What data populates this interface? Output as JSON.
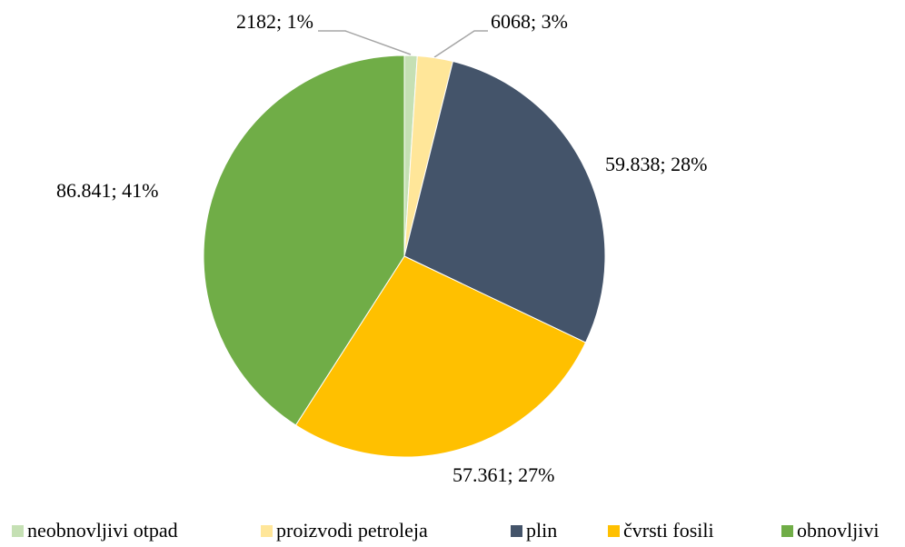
{
  "chart_data": {
    "type": "pie",
    "categories": [
      "neobnovljivi otpad",
      "proizvodi petroleja",
      "plin",
      "čvrsti fosili",
      "obnovljivi"
    ],
    "values": [
      2182,
      6068,
      59838,
      57361,
      86841
    ],
    "value_labels": [
      "2182; 1%",
      "6068; 3%",
      "59.838; 28%",
      "57.361; 27%",
      "86.841; 41%"
    ],
    "colors": [
      "#c5e0b4",
      "#ffe699",
      "#44546a",
      "#ffc000",
      "#70ad47"
    ],
    "legend": "bottom"
  }
}
